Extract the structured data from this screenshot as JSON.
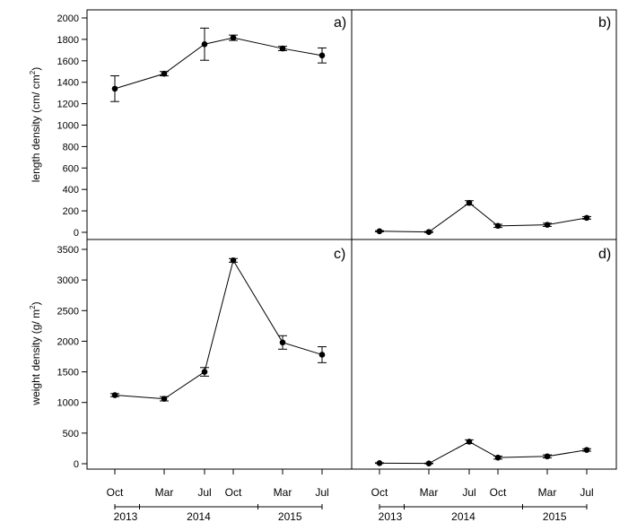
{
  "chart_data": [
    {
      "panel": "a)",
      "type": "line",
      "x": [
        "Oct",
        "Mar",
        "Jul",
        "Oct",
        "Mar",
        "Jul"
      ],
      "values": [
        1340,
        1480,
        1755,
        1815,
        1715,
        1650
      ],
      "errors": [
        120,
        20,
        150,
        25,
        20,
        70
      ],
      "yticks": [
        "0",
        "200",
        "400",
        "600",
        "800",
        "1000",
        "1200",
        "1400",
        "1600",
        "1800",
        "2000"
      ],
      "ylim": [
        0,
        2000
      ],
      "ylabel": "length density (cm/ cm",
      "ylabel_sup": "2",
      "ylabel_end": ")"
    },
    {
      "panel": "b)",
      "type": "line",
      "x": [
        "Oct",
        "Mar",
        "Jul",
        "Oct",
        "Mar",
        "Jul"
      ],
      "values": [
        10,
        3,
        275,
        60,
        70,
        135
      ],
      "errors": [
        5,
        5,
        20,
        15,
        15,
        12
      ],
      "ylim": [
        0,
        2000
      ]
    },
    {
      "panel": "c)",
      "type": "line",
      "x": [
        "Oct",
        "Mar",
        "Jul",
        "Oct",
        "Mar",
        "Jul"
      ],
      "values": [
        1120,
        1060,
        1500,
        3320,
        1980,
        1780
      ],
      "errors": [
        25,
        35,
        70,
        30,
        110,
        130
      ],
      "yticks": [
        "0",
        "500",
        "1000",
        "1500",
        "2000",
        "2500",
        "3000",
        "3500"
      ],
      "ylim": [
        0,
        3500
      ],
      "ylabel": "weight density (g/ m",
      "ylabel_sup": "2",
      "ylabel_end": ")"
    },
    {
      "panel": "d)",
      "type": "line",
      "x": [
        "Oct",
        "Mar",
        "Jul",
        "Oct",
        "Mar",
        "Jul"
      ],
      "values": [
        10,
        5,
        360,
        100,
        120,
        225
      ],
      "errors": [
        5,
        5,
        30,
        25,
        25,
        20
      ],
      "ylim": [
        0,
        3500
      ]
    }
  ],
  "x_tick_labels": [
    "Oct",
    "Mar",
    "Jul",
    "Oct",
    "Mar",
    "Jul"
  ],
  "year_labels": [
    "2013",
    "2014",
    "2015"
  ]
}
